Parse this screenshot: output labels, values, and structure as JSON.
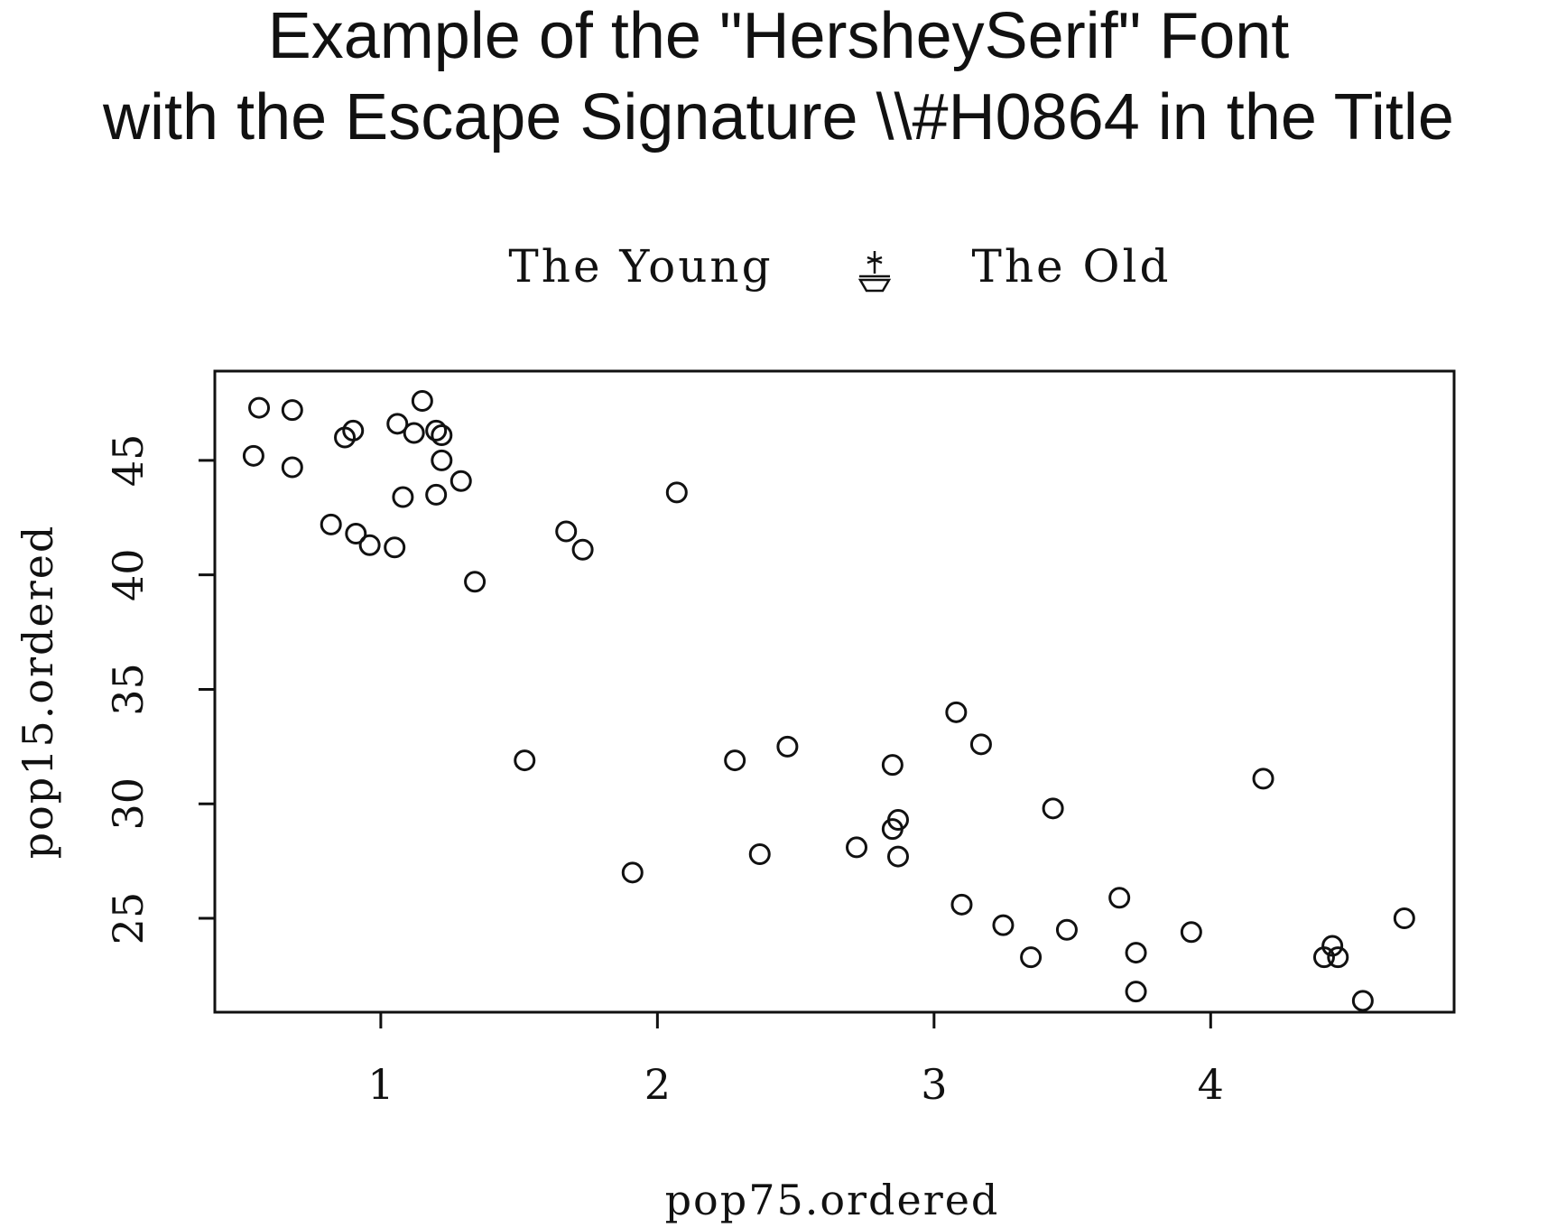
{
  "chart_data": {
    "type": "scatter",
    "title": [
      "Example of the \"HersheySerif\" Font",
      "with the Escape Signature \\\\#H0864 in the Title"
    ],
    "subtitle": {
      "left": "The Young",
      "symbol": "boat-with-star-icon",
      "right": "The Old"
    },
    "xlabel": "pop75.ordered",
    "ylabel": "pop15.ordered",
    "xlim": [
      0.4,
      4.88
    ],
    "ylim": [
      20.9,
      48.9
    ],
    "xticks": [
      1,
      2,
      3,
      4
    ],
    "xtick_labels": [
      "1",
      "2",
      "3",
      "4"
    ],
    "yticks": [
      25,
      30,
      35,
      40,
      45
    ],
    "ytick_labels": [
      "25",
      "30",
      "35",
      "40",
      "45"
    ],
    "grid": false,
    "marker": "open-circle",
    "colors": {
      "ink": "#111111",
      "background": "#ffffff"
    },
    "points": [
      {
        "x": 0.56,
        "y": 47.3
      },
      {
        "x": 0.68,
        "y": 47.2
      },
      {
        "x": 0.54,
        "y": 45.2
      },
      {
        "x": 0.68,
        "y": 44.7
      },
      {
        "x": 0.87,
        "y": 46.0
      },
      {
        "x": 0.9,
        "y": 46.3
      },
      {
        "x": 1.06,
        "y": 46.6
      },
      {
        "x": 1.12,
        "y": 46.2
      },
      {
        "x": 1.15,
        "y": 47.6
      },
      {
        "x": 1.2,
        "y": 46.3
      },
      {
        "x": 1.22,
        "y": 46.1
      },
      {
        "x": 1.22,
        "y": 45.0
      },
      {
        "x": 1.08,
        "y": 43.4
      },
      {
        "x": 1.2,
        "y": 43.5
      },
      {
        "x": 1.29,
        "y": 44.1
      },
      {
        "x": 0.82,
        "y": 42.2
      },
      {
        "x": 0.91,
        "y": 41.8
      },
      {
        "x": 0.96,
        "y": 41.3
      },
      {
        "x": 1.05,
        "y": 41.2
      },
      {
        "x": 1.34,
        "y": 39.7
      },
      {
        "x": 1.67,
        "y": 41.9
      },
      {
        "x": 1.73,
        "y": 41.1
      },
      {
        "x": 2.07,
        "y": 43.6
      },
      {
        "x": 1.52,
        "y": 31.9
      },
      {
        "x": 1.91,
        "y": 27.0
      },
      {
        "x": 2.28,
        "y": 31.9
      },
      {
        "x": 2.37,
        "y": 27.8
      },
      {
        "x": 2.47,
        "y": 32.5
      },
      {
        "x": 2.72,
        "y": 28.1
      },
      {
        "x": 2.85,
        "y": 31.7
      },
      {
        "x": 2.85,
        "y": 28.9
      },
      {
        "x": 2.87,
        "y": 29.3
      },
      {
        "x": 2.87,
        "y": 27.7
      },
      {
        "x": 3.08,
        "y": 34.0
      },
      {
        "x": 3.17,
        "y": 32.6
      },
      {
        "x": 3.1,
        "y": 25.6
      },
      {
        "x": 3.25,
        "y": 24.7
      },
      {
        "x": 3.35,
        "y": 23.3
      },
      {
        "x": 3.43,
        "y": 29.8
      },
      {
        "x": 3.48,
        "y": 24.5
      },
      {
        "x": 3.67,
        "y": 25.9
      },
      {
        "x": 3.73,
        "y": 23.5
      },
      {
        "x": 3.73,
        "y": 21.8
      },
      {
        "x": 3.93,
        "y": 24.4
      },
      {
        "x": 4.19,
        "y": 31.1
      },
      {
        "x": 4.41,
        "y": 23.3
      },
      {
        "x": 4.44,
        "y": 23.8
      },
      {
        "x": 4.46,
        "y": 23.3
      },
      {
        "x": 4.55,
        "y": 21.4
      },
      {
        "x": 4.7,
        "y": 25.0
      }
    ]
  }
}
